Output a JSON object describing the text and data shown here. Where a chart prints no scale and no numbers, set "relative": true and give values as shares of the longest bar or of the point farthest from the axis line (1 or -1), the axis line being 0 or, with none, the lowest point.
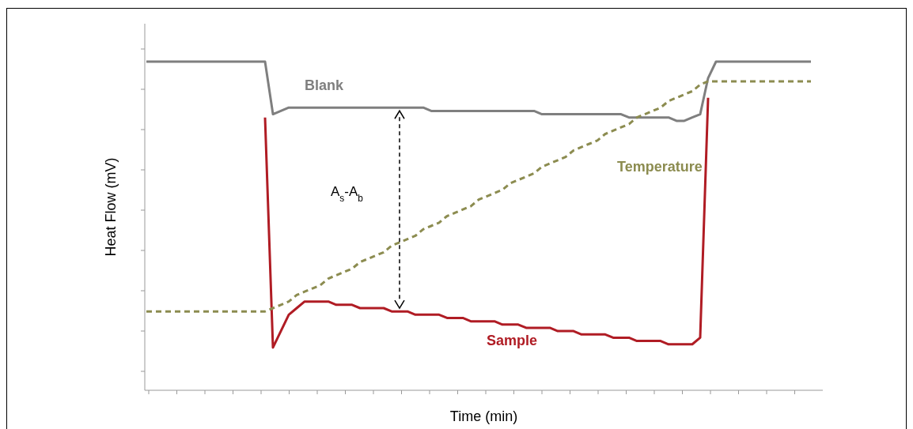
{
  "chart_data": {
    "type": "line",
    "relative": true,
    "xlabel": "Time (min)",
    "ylabel": "Heat Flow (mV)",
    "annotations": [
      "A$_{s}$-A$_{b}$"
    ],
    "categories": [
      null,
      null,
      null,
      null,
      null,
      null,
      null,
      null,
      null,
      null,
      null,
      null,
      null,
      null,
      null,
      null,
      null,
      null,
      null,
      null,
      null,
      null,
      null,
      null,
      null,
      null,
      null,
      null,
      null,
      null,
      null,
      null,
      null,
      null,
      null,
      null,
      null,
      null,
      null,
      null,
      null,
      null,
      null,
      null,
      null,
      null,
      null,
      null,
      null,
      null,
      null,
      null,
      null,
      null,
      null,
      null,
      null,
      null,
      null,
      null,
      null,
      null,
      null,
      null,
      null,
      null,
      null,
      null,
      null,
      null,
      null,
      null,
      null,
      null,
      null,
      null,
      null,
      null,
      null,
      null,
      null,
      null,
      null,
      null,
      null
    ],
    "series": [
      {
        "name": "Blank",
        "color": "#7f7f7f",
        "values": [
          1,
          1,
          1,
          1,
          1,
          1,
          1,
          1,
          1,
          1,
          1,
          1,
          1,
          1,
          1,
          1,
          0.84,
          0.85,
          0.86,
          0.86,
          0.86,
          0.86,
          0.86,
          0.86,
          0.86,
          0.86,
          0.86,
          0.86,
          0.86,
          0.86,
          0.86,
          0.86,
          0.86,
          0.86,
          0.86,
          0.86,
          0.85,
          0.85,
          0.85,
          0.85,
          0.85,
          0.85,
          0.85,
          0.85,
          0.85,
          0.85,
          0.85,
          0.85,
          0.85,
          0.85,
          0.84,
          0.84,
          0.84,
          0.84,
          0.84,
          0.84,
          0.84,
          0.84,
          0.84,
          0.84,
          0.84,
          0.83,
          0.83,
          0.83,
          0.83,
          0.83,
          0.83,
          0.82,
          0.82,
          0.83,
          0.84,
          0.95,
          1,
          1,
          1,
          1,
          1,
          1,
          1,
          1,
          1,
          1,
          1,
          1,
          1
        ]
      },
      {
        "name": "Sample",
        "color": "#b01c24",
        "values": [
          null,
          null,
          null,
          null,
          null,
          null,
          null,
          null,
          null,
          null,
          null,
          null,
          null,
          null,
          null,
          0.83,
          0.13,
          0.18,
          0.23,
          0.25,
          0.27,
          0.27,
          0.27,
          0.27,
          0.26,
          0.26,
          0.26,
          0.25,
          0.25,
          0.25,
          0.25,
          0.24,
          0.24,
          0.24,
          0.23,
          0.23,
          0.23,
          0.23,
          0.22,
          0.22,
          0.22,
          0.21,
          0.21,
          0.21,
          0.21,
          0.2,
          0.2,
          0.2,
          0.19,
          0.19,
          0.19,
          0.19,
          0.18,
          0.18,
          0.18,
          0.17,
          0.17,
          0.17,
          0.17,
          0.16,
          0.16,
          0.16,
          0.15,
          0.15,
          0.15,
          0.15,
          0.14,
          0.14,
          0.14,
          0.14,
          0.16,
          0.89,
          null,
          null,
          null,
          null,
          null,
          null,
          null,
          null,
          null,
          null,
          null,
          null,
          null
        ]
      },
      {
        "name": "Temperature",
        "color": "#8c8c50",
        "line_style": "dashed",
        "values": [
          0.24,
          0.24,
          0.24,
          0.24,
          0.24,
          0.24,
          0.24,
          0.24,
          0.24,
          0.24,
          0.24,
          0.24,
          0.24,
          0.24,
          0.24,
          0.24,
          0.25,
          0.26,
          0.27,
          0.29,
          0.3,
          0.31,
          0.32,
          0.34,
          0.35,
          0.36,
          0.37,
          0.39,
          0.4,
          0.41,
          0.42,
          0.44,
          0.45,
          0.46,
          0.47,
          0.49,
          0.5,
          0.51,
          0.53,
          0.54,
          0.55,
          0.56,
          0.58,
          0.59,
          0.6,
          0.61,
          0.63,
          0.64,
          0.65,
          0.66,
          0.68,
          0.69,
          0.7,
          0.71,
          0.73,
          0.74,
          0.75,
          0.76,
          0.78,
          0.79,
          0.8,
          0.81,
          0.83,
          0.84,
          0.85,
          0.86,
          0.88,
          0.89,
          0.9,
          0.91,
          0.93,
          0.94,
          0.94,
          0.94,
          0.94,
          0.94,
          0.94,
          0.94,
          0.94,
          0.94,
          0.94,
          0.94,
          0.94,
          0.94,
          0.94
        ]
      }
    ]
  }
}
